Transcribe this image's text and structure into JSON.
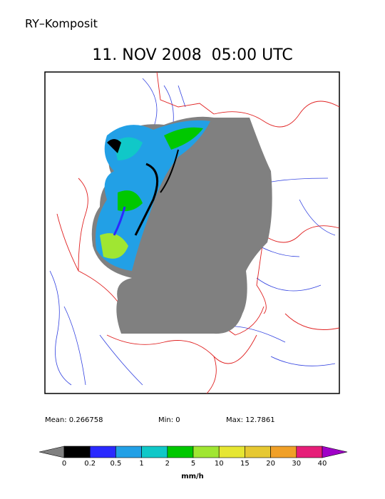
{
  "header": {
    "title": "RY–Komposit",
    "timestamp": "11. NOV 2008  05:00 UTC"
  },
  "stats": {
    "mean": "Mean: 0.266758",
    "min": "Min: 0",
    "max": "Max: 12.7861"
  },
  "colorbar": {
    "labels": [
      "0",
      "0.2",
      "0.5",
      "1",
      "2",
      "5",
      "10",
      "15",
      "20",
      "30",
      "40"
    ],
    "colors": [
      "#000000",
      "#2a2aff",
      "#22a0e6",
      "#10c8c8",
      "#00c800",
      "#a0e632",
      "#e6e632",
      "#e6c832",
      "#f0a028",
      "#e61e78"
    ],
    "under_color": "#808080",
    "over_color": "#a000c8",
    "unit": "mm/h"
  }
}
